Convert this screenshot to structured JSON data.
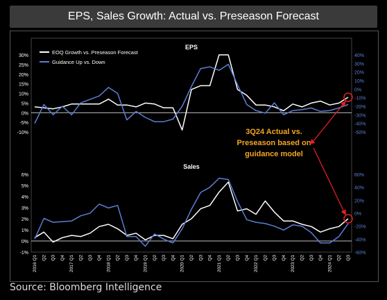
{
  "title": "EPS, Sales Growth: Actual vs. Preseason Forecast",
  "source": "Source: Bloomberg Intelligence",
  "annotation": {
    "lines": [
      "3Q24 Actual vs.",
      "Preseason based on",
      "guidance model"
    ],
    "color": "#f5a623",
    "arrow_color": "#e02020"
  },
  "colors": {
    "white_series": "#ffffff",
    "blue_series": "#5b7fd6",
    "left_axis": "#ffffff",
    "right_axis": "#5b7fd6",
    "marker": "#e02020"
  },
  "x_labels": [
    "2016 Q1",
    "Q2",
    "Q3",
    "Q4",
    "2017 Q1",
    "Q2",
    "Q3",
    "Q4",
    "2018 Q1",
    "Q2",
    "Q3",
    "Q4",
    "2019 Q1",
    "Q2",
    "Q3",
    "Q4",
    "2020 Q1",
    "Q2",
    "Q3",
    "Q4",
    "2021 Q1",
    "Q2",
    "Q3",
    "Q4",
    "2022 Q1",
    "Q2",
    "Q3",
    "Q4",
    "2023 Q1",
    "Q2",
    "Q3",
    "Q4",
    "2024 Q1",
    "Q2",
    "Q3"
  ],
  "chart_data": [
    {
      "type": "line",
      "title": "EPS",
      "legend": "top-left",
      "ylim_left": [
        -10,
        30
      ],
      "yticks_left": [
        "30%",
        "25%",
        "20%",
        "15%",
        "10%",
        "5%",
        "0%",
        "-5%",
        "-10%"
      ],
      "ylim_right": [
        -50,
        40
      ],
      "yticks_right": [
        "40%",
        "30%",
        "20%",
        "10%",
        "0%",
        "-10%",
        "-20%",
        "-30%",
        "-40%",
        "-50%"
      ],
      "series": [
        {
          "name": "EOQ Growth vs. Preseason Forecast",
          "axis": "left",
          "color": "#ffffff",
          "values": [
            3,
            2.5,
            2,
            3,
            4.5,
            4.5,
            4.5,
            4.5,
            7,
            4,
            4,
            3,
            5,
            4.5,
            2.5,
            2.5,
            -9,
            12,
            14,
            14,
            30,
            30,
            12,
            9,
            4,
            4,
            3,
            1,
            4.5,
            3,
            5,
            6,
            4,
            5,
            8
          ]
        },
        {
          "name": "Guidance Up vs. Down",
          "axis": "right",
          "color": "#5b7fd6",
          "values": [
            -40,
            -18,
            -30,
            -20,
            -30,
            -16,
            -12,
            -8,
            2,
            -5,
            -36,
            -26,
            -33,
            -38,
            -38,
            -35,
            -20,
            3,
            24,
            26,
            22,
            29,
            5,
            -18,
            -25,
            -28,
            -16,
            -30,
            -25,
            -24,
            -22,
            -26,
            -25,
            -22,
            -18
          ]
        }
      ]
    },
    {
      "type": "line",
      "title": "Sales",
      "ylim_left": [
        -1,
        6
      ],
      "yticks_left": [
        "6%",
        "5%",
        "4%",
        "3%",
        "2%",
        "1%",
        "0%",
        "-1%"
      ],
      "ylim_right": [
        -60,
        60
      ],
      "yticks_right": [
        "60%",
        "40%",
        "20%",
        "0%",
        "-20%",
        "-40%",
        "-60%"
      ],
      "series": [
        {
          "name": "EOQ Growth vs. Preseason Forecast",
          "axis": "left",
          "color": "#ffffff",
          "values": [
            0.3,
            0.8,
            -0.1,
            0.3,
            0.5,
            0.4,
            0.7,
            1.3,
            1.5,
            1.1,
            0.5,
            0.7,
            0.1,
            0.5,
            0.5,
            0.2,
            1.5,
            2.0,
            2.9,
            3.2,
            4.4,
            5.3,
            2.7,
            2.9,
            2.4,
            3.6,
            2.6,
            1.8,
            1.8,
            1.5,
            1.3,
            0.8,
            1.1,
            1.3,
            2.0
          ]
        },
        {
          "name": "Guidance Up vs. Down",
          "axis": "right",
          "color": "#5b7fd6",
          "values": [
            -40,
            -8,
            -14,
            -13,
            -12,
            -4,
            0,
            14,
            8,
            12,
            -36,
            -36,
            -51,
            -32,
            -40,
            -46,
            -24,
            6,
            32,
            40,
            54,
            52,
            18,
            -10,
            -14,
            -16,
            -20,
            -26,
            -18,
            -20,
            -30,
            -46,
            -46,
            -36,
            -16
          ]
        }
      ]
    }
  ]
}
